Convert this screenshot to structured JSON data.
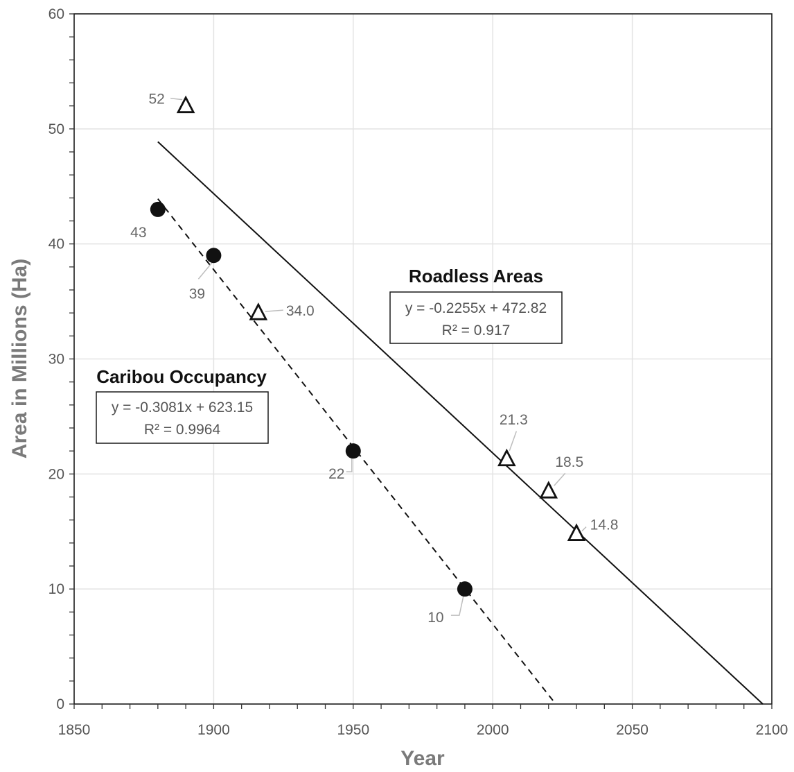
{
  "chart_data": {
    "type": "scatter",
    "title": "",
    "xlabel": "Year",
    "ylabel": "Area in Millions (Ha)",
    "xlim": [
      1850,
      2100
    ],
    "ylim": [
      0,
      60
    ],
    "x_ticks": [
      "1850",
      "1900",
      "1950",
      "2000",
      "2050",
      "2100"
    ],
    "y_ticks": [
      "0",
      "10",
      "20",
      "30",
      "40",
      "50",
      "60"
    ],
    "grid": true,
    "legend": "none",
    "series": [
      {
        "name": "Caribou Occupancy",
        "marker": "filled-circle",
        "points": [
          {
            "x": 1880,
            "y": 43,
            "label": "43"
          },
          {
            "x": 1900,
            "y": 39,
            "label": "39"
          },
          {
            "x": 1950,
            "y": 22,
            "label": "22"
          },
          {
            "x": 1990,
            "y": 10,
            "label": "10"
          }
        ],
        "trendline": {
          "style": "dashed",
          "slope": -0.3081,
          "intercept": 623.15,
          "x_range": [
            1880,
            2022.5
          ],
          "equation": "y = -0.3081x + 623.15",
          "r2": "R² = 0.9964"
        }
      },
      {
        "name": "Roadless Areas",
        "marker": "open-triangle",
        "points": [
          {
            "x": 1890,
            "y": 52,
            "label": "52"
          },
          {
            "x": 1916,
            "y": 34.0,
            "label": "34.0"
          },
          {
            "x": 2005,
            "y": 21.3,
            "label": "21.3"
          },
          {
            "x": 2020,
            "y": 18.5,
            "label": "18.5"
          },
          {
            "x": 2030,
            "y": 14.8,
            "label": "14.8"
          }
        ],
        "trendline": {
          "style": "solid",
          "slope": -0.2255,
          "intercept": 472.82,
          "x_range": [
            1880,
            2096.8
          ],
          "equation": "y = -0.2255x + 472.82",
          "r2": "R² = 0.917"
        }
      }
    ]
  }
}
